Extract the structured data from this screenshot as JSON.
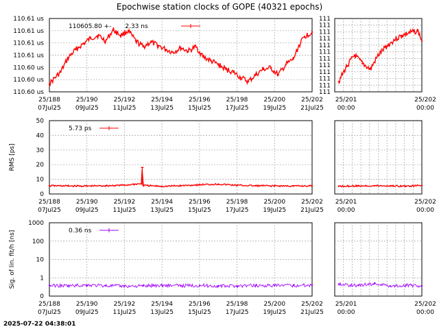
{
  "title": "Epochwise station clocks of GOPE (40321 epochs)",
  "footer": "2025-07-22 04:38:01",
  "colors": {
    "series": "#ff0000",
    "sig": "#a000ff",
    "grid": "#a0a0a0",
    "axis": "#000000"
  },
  "x_main": {
    "range": [
      188,
      202
    ],
    "ticks": [
      {
        "v": 188,
        "top": "25/188",
        "bottom": "07Jul25"
      },
      {
        "v": 190,
        "top": "25/190",
        "bottom": "09Jul25"
      },
      {
        "v": 192,
        "top": "25/192",
        "bottom": "11Jul25"
      },
      {
        "v": 194,
        "top": "25/194",
        "bottom": "13Jul25"
      },
      {
        "v": 196,
        "top": "25/196",
        "bottom": "15Jul25"
      },
      {
        "v": 198,
        "top": "25/198",
        "bottom": "17Jul25"
      },
      {
        "v": 200,
        "top": "25/200",
        "bottom": "19Jul25"
      },
      {
        "v": 202,
        "top": "25/202",
        "bottom": "21Jul25"
      }
    ]
  },
  "x_zoom": {
    "range": [
      200.9,
      202
    ],
    "ticks": [
      {
        "v": 201,
        "top": "25/201",
        "bottom": "00:00"
      },
      {
        "v": 202,
        "top": "25/202",
        "bottom": "00:00"
      }
    ]
  },
  "chart_data": [
    {
      "type": "line",
      "panel": "clock",
      "ylabel": "",
      "ylim": [
        110.6,
        110.613
      ],
      "yticks_main": [
        "110.60 us",
        "110.60 us",
        "110.60 us",
        "110.61 us",
        "110.61 us",
        "110.61 us",
        "110.61 us"
      ],
      "yticks_zoom": [
        "111",
        "111",
        "111",
        "111",
        "111",
        "111",
        "111",
        "111",
        "111",
        "111",
        "111",
        "111"
      ],
      "legend": "110605.80 +-       2.33 ns",
      "legend_placement": "top-left",
      "grid": true,
      "series": [
        {
          "x": [
            188.0,
            188.3,
            188.6,
            189.0,
            189.4,
            189.8,
            190.2,
            190.6,
            191.0,
            191.4,
            191.8,
            192.2,
            192.6,
            193.0,
            193.4,
            193.8,
            194.2,
            194.6,
            195.0,
            195.4,
            195.8,
            196.2,
            196.6,
            197.0,
            197.4,
            197.8,
            198.2,
            198.6,
            199.0,
            199.4,
            199.8,
            200.2,
            200.6,
            201.0,
            201.3,
            201.6,
            202.0
          ],
          "y": [
            110.6014,
            110.6025,
            110.6035,
            110.606,
            110.6075,
            110.6085,
            110.6095,
            110.61,
            110.609,
            110.611,
            110.61,
            110.6108,
            110.609,
            110.608,
            110.6088,
            110.6082,
            110.6075,
            110.607,
            110.6078,
            110.6072,
            110.608,
            110.6062,
            110.6055,
            110.6048,
            110.604,
            110.6035,
            110.6025,
            110.6018,
            110.603,
            110.604,
            110.6042,
            110.603,
            110.6048,
            110.6058,
            110.6082,
            110.6098,
            110.6106
          ]
        }
      ],
      "zoom_series": {
        "x": [
          200.95,
          201.05,
          201.15,
          201.25,
          201.35,
          201.45,
          201.55,
          201.65,
          201.75,
          201.85,
          201.95,
          202.0
        ],
        "y": [
          110.6018,
          110.6045,
          110.6065,
          110.605,
          110.604,
          110.6065,
          110.608,
          110.6092,
          110.61,
          110.6105,
          110.6108,
          110.609
        ]
      }
    },
    {
      "type": "line",
      "panel": "rms",
      "ylabel": "RMS [ps]",
      "ylim": [
        0,
        50
      ],
      "yticks": [
        0,
        10,
        20,
        30,
        40,
        50
      ],
      "legend": "5.73 ps",
      "legend_placement": "top-left",
      "grid": true,
      "series": [
        {
          "x": [
            188.0,
            189.0,
            190.0,
            191.0,
            192.0,
            192.5,
            192.9,
            192.95,
            193.0,
            194.0,
            195.0,
            196.0,
            197.0,
            198.0,
            199.0,
            200.0,
            201.0,
            202.0
          ],
          "y": [
            5.6,
            5.5,
            5.4,
            5.6,
            6.0,
            6.6,
            7.0,
            18.0,
            5.8,
            5.2,
            5.6,
            6.3,
            6.7,
            5.9,
            5.6,
            5.5,
            5.4,
            5.5
          ]
        }
      ],
      "zoom_series": {
        "x": [
          200.95,
          201.2,
          201.4,
          201.6,
          201.8,
          202.0
        ],
        "y": [
          5.3,
          5.5,
          5.6,
          5.5,
          5.3,
          5.8
        ]
      }
    },
    {
      "type": "line",
      "panel": "sig",
      "ylabel": "Sig. of lin. fit/h [ns]",
      "yscale": "log",
      "ylim": [
        0.1,
        1000
      ],
      "yticks": [
        {
          "v": 0.1,
          "label": "0"
        },
        {
          "v": 1,
          "label": "1"
        },
        {
          "v": 10,
          "label": "10"
        },
        {
          "v": 100,
          "label": "100"
        },
        {
          "v": 1000,
          "label": "1000"
        }
      ],
      "legend": "0.36 ns",
      "legend_placement": "top-left",
      "grid": true,
      "series": [
        {
          "x": [
            188.0,
            189.0,
            190.0,
            191.0,
            192.0,
            193.0,
            194.0,
            195.0,
            196.0,
            197.0,
            198.0,
            199.0,
            200.0,
            201.0,
            202.0
          ],
          "y": [
            0.38,
            0.36,
            0.4,
            0.37,
            0.35,
            0.36,
            0.39,
            0.37,
            0.38,
            0.35,
            0.36,
            0.38,
            0.37,
            0.38,
            0.4
          ]
        }
      ],
      "zoom_series": {
        "x": [
          200.95,
          201.2,
          201.4,
          201.6,
          201.8,
          202.0
        ],
        "y": [
          0.45,
          0.38,
          0.48,
          0.36,
          0.38,
          0.37
        ]
      }
    }
  ]
}
